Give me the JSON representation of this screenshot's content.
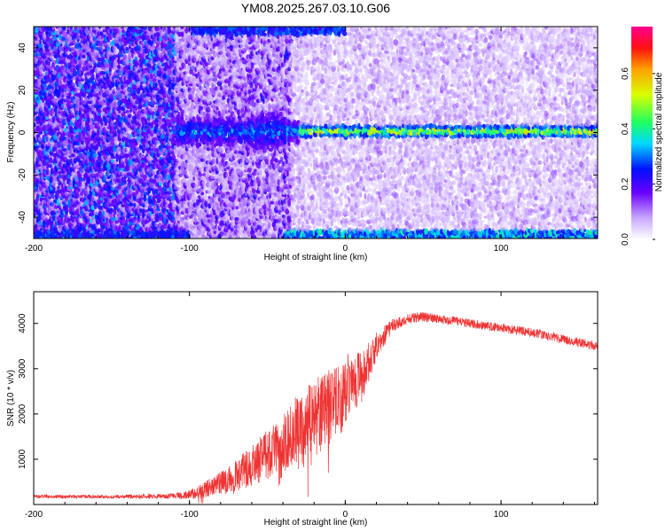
{
  "chart_data": [
    {
      "type": "heatmap",
      "title": "YM08.2025.267.03.10.G06",
      "xlabel": "Height of straight line (km)",
      "ylabel": "Frequency (Hz)",
      "xlim": [
        -200,
        162
      ],
      "ylim": [
        -50,
        50
      ],
      "xticks": [
        -200,
        -100,
        0,
        100
      ],
      "yticks": [
        -40,
        -20,
        0,
        20,
        40
      ],
      "colorbar": {
        "label": "Normalized spectral amplitude",
        "range": [
          0.0,
          0.77
        ],
        "ticks": [
          "0.0",
          "0.2",
          "0.4",
          "0.6"
        ],
        "tick_values": [
          0.0,
          0.2,
          0.4,
          0.6
        ]
      },
      "features": [
        {
          "name": "carrier line",
          "frequency_hz": 0,
          "x_range": [
            -30,
            162
          ]
        },
        {
          "name": "disturbed carrier",
          "frequency_hz": 0,
          "x_range": [
            -105,
            -30
          ]
        },
        {
          "name": "upper alias band",
          "frequency_hz": 48,
          "x_range": [
            -100,
            0
          ]
        },
        {
          "name": "lower alias band",
          "frequency_hz": -49,
          "x_range": [
            -40,
            162
          ]
        }
      ]
    },
    {
      "type": "line",
      "title": "",
      "xlabel": "Height of straight line (km)",
      "ylabel": "SNR (10 * v/v)",
      "xlim": [
        -200,
        162
      ],
      "ylim": [
        0,
        4700
      ],
      "xticks": [
        -200,
        -100,
        0,
        100
      ],
      "yticks": [
        1000,
        2000,
        3000,
        4000
      ],
      "color": "#ee3333",
      "series": [
        {
          "name": "SNR",
          "x": [
            -200,
            -150,
            -110,
            -100,
            -90,
            -80,
            -70,
            -60,
            -50,
            -40,
            -30,
            -20,
            -10,
            0,
            10,
            20,
            30,
            40,
            50,
            60,
            80,
            100,
            120,
            140,
            162
          ],
          "values": [
            180,
            170,
            190,
            220,
            320,
            480,
            650,
            850,
            1100,
            1400,
            1700,
            1900,
            2200,
            2500,
            2800,
            3500,
            3950,
            4100,
            4150,
            4100,
            4000,
            3900,
            3800,
            3650,
            3500
          ],
          "spread": [
            40,
            40,
            60,
            100,
            180,
            250,
            350,
            450,
            550,
            650,
            750,
            850,
            900,
            700,
            600,
            300,
            150,
            120,
            110,
            100,
            100,
            100,
            100,
            100,
            100
          ]
        }
      ]
    }
  ]
}
